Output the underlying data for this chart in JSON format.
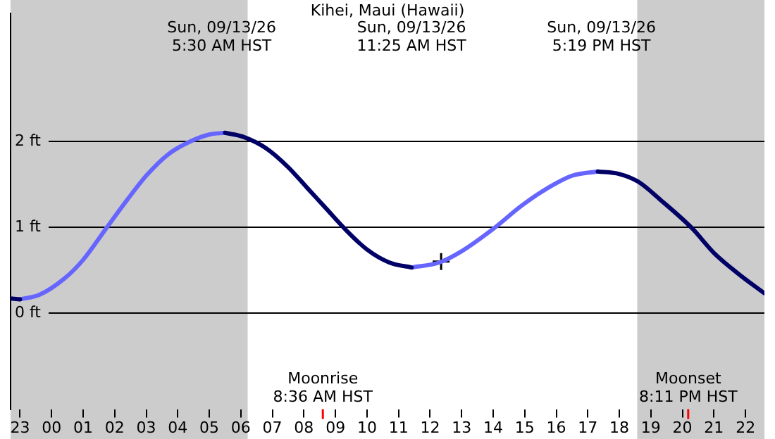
{
  "chart_data": {
    "type": "line",
    "title": "Kihei, Maui (Hawaii)",
    "x": [
      "--09-12T22:42",
      "--09-12T23:00",
      "--09-12T23:36",
      "--09-13T00:24",
      "--09-13T01:00",
      "--09-13T01:42",
      "--09-13T02:24",
      "--09-13T03:00",
      "--09-13T03:42",
      "--09-13T04:24",
      "--09-13T05:00",
      "--09-13T05:30",
      "--09-13T06:06",
      "--09-13T06:48",
      "--09-13T07:30",
      "--09-13T08:06",
      "--09-13T08:42",
      "--09-13T09:18",
      "--09-13T10:00",
      "--09-13T10:42",
      "--09-13T11:25",
      "--09-13T12:18",
      "--09-13T13:00",
      "--09-13T14:00",
      "--09-13T14:54",
      "--09-13T15:42",
      "--09-13T16:30",
      "--09-13T17:19",
      "--09-13T18:00",
      "--09-13T18:36",
      "--09-13T19:18",
      "--09-13T20:18",
      "--09-13T21:00",
      "--09-13T21:48",
      "--09-13T22:36"
    ],
    "series": [
      {
        "color": "#000066",
        "values": [
          0.17,
          0.16,
          null,
          null,
          null,
          null,
          null,
          null,
          null,
          null,
          null,
          2.1,
          2.05,
          1.92,
          1.7,
          1.46,
          1.22,
          0.98,
          0.74,
          0.59,
          0.53,
          null,
          null,
          null,
          null,
          null,
          null,
          1.65,
          1.62,
          1.53,
          1.32,
          0.99,
          0.7,
          0.45,
          0.23
        ]
      },
      {
        "color": "#6666ff",
        "values": [
          null,
          0.16,
          0.21,
          0.4,
          0.62,
          0.97,
          1.32,
          1.6,
          1.85,
          2.0,
          2.08,
          2.1,
          null,
          null,
          null,
          null,
          null,
          null,
          null,
          null,
          0.53,
          0.59,
          0.72,
          0.98,
          1.25,
          1.45,
          1.6,
          1.65,
          null,
          null,
          null,
          null,
          null,
          null,
          null
        ]
      },
      {
        "type": "scatter",
        "color": "#000000",
        "marker": "cross",
        "x": [
          "--09-13T12:21"
        ],
        "values": [
          0.6
        ]
      }
    ],
    "xlim": [
      "--09-12T22:42",
      "--09-13T22:36"
    ],
    "xticks": [
      {
        "value": "--09-12T23:00",
        "label": "23"
      },
      {
        "value": "--09-13T00:00",
        "label": "00"
      },
      {
        "value": "--09-13T01:00",
        "label": "01"
      },
      {
        "value": "--09-13T02:00",
        "label": "02"
      },
      {
        "value": "--09-13T03:00",
        "label": "03"
      },
      {
        "value": "--09-13T04:00",
        "label": "04"
      },
      {
        "value": "--09-13T05:00",
        "label": "05"
      },
      {
        "value": "--09-13T06:00",
        "label": "06"
      },
      {
        "value": "--09-13T07:00",
        "label": "07"
      },
      {
        "value": "--09-13T08:00",
        "label": "08"
      },
      {
        "value": "--09-13T09:00",
        "label": "09"
      },
      {
        "value": "--09-13T10:00",
        "label": "10"
      },
      {
        "value": "--09-13T11:00",
        "label": "11"
      },
      {
        "value": "--09-13T12:00",
        "label": "12"
      },
      {
        "value": "--09-13T13:00",
        "label": "13"
      },
      {
        "value": "--09-13T14:00",
        "label": "14"
      },
      {
        "value": "--09-13T15:00",
        "label": "15"
      },
      {
        "value": "--09-13T16:00",
        "label": "16"
      },
      {
        "value": "--09-13T17:00",
        "label": "17"
      },
      {
        "value": "--09-13T18:00",
        "label": "18"
      },
      {
        "value": "--09-13T19:00",
        "label": "19"
      },
      {
        "value": "--09-13T20:00",
        "label": "20"
      },
      {
        "value": "--09-13T21:00",
        "label": "21"
      },
      {
        "value": "--09-13T22:00",
        "label": "22"
      }
    ],
    "ylim": [
      -1.12,
      3.49
    ],
    "yticks": [
      {
        "value": 0,
        "label": "0 ft"
      },
      {
        "value": 1,
        "label": "1 ft"
      },
      {
        "value": 2,
        "label": "2 ft"
      }
    ],
    "grid": "y",
    "legend": false,
    "marker": "none",
    "line_style": "solid",
    "bands": [
      {
        "axis": "x",
        "from": "--09-12T22:42",
        "to": "--09-13T06:13",
        "color": "#cccccc"
      },
      {
        "axis": "x",
        "from": "--09-13T18:34",
        "to": "--09-13T22:36",
        "color": "#cccccc"
      }
    ],
    "ref_lines": [
      {
        "axis": "x",
        "value": "--09-13T08:36",
        "label": "Moonrise\n8:36 AM HST",
        "color": "#ff0000"
      },
      {
        "axis": "x",
        "value": "--09-13T20:11",
        "label": "Moonset\n8:11 PM HST",
        "color": "#ff0000"
      }
    ],
    "annotations": [
      "Sun, 09/13/26\n5:30 AM HST",
      "Sun, 09/13/26\n11:25 AM HST",
      "Sun, 09/13/26\n5:19 PM HST"
    ]
  }
}
